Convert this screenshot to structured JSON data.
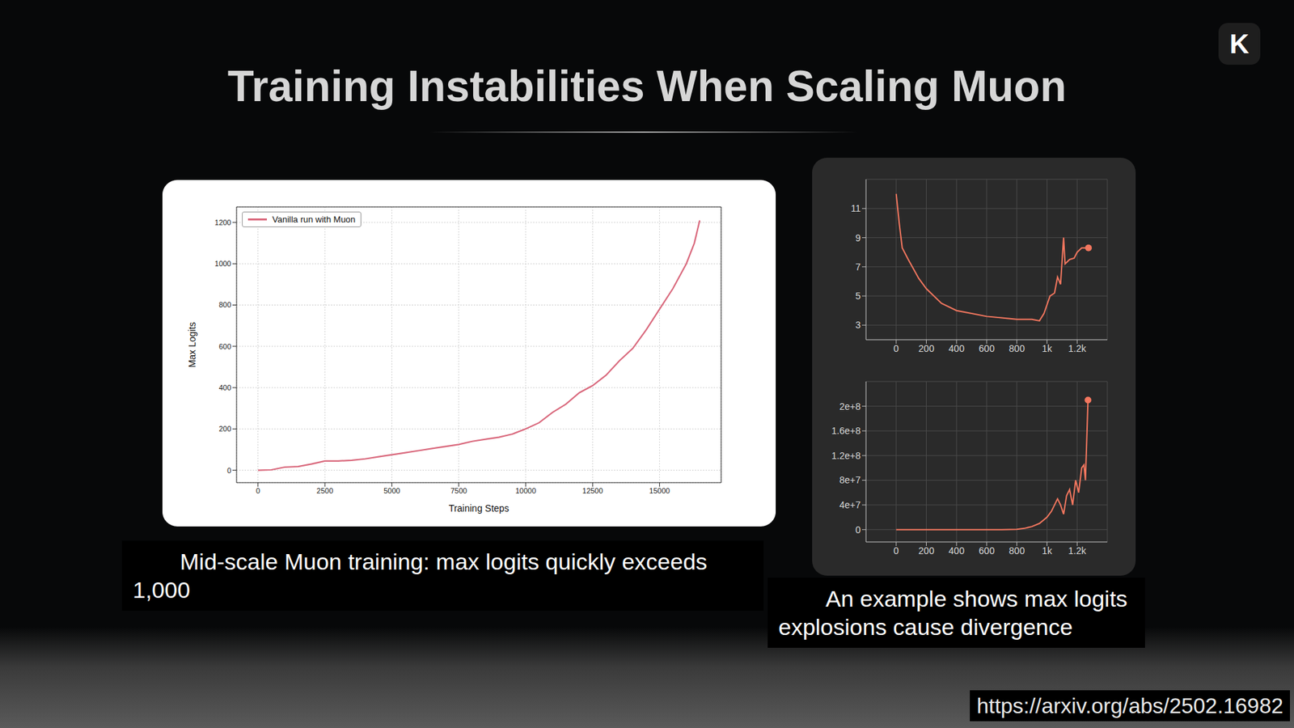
{
  "title": "Training Instabilities When Scaling Muon",
  "logo": "K",
  "url": "https://arxiv.org/abs/2502.16982",
  "captions": [
    "Mid-scale Muon training: max logits quickly exceeds 1,000",
    "An example shows max logits explosions cause divergence"
  ],
  "chart_data": [
    {
      "type": "line",
      "x_label": "Training Steps",
      "y_label": "Max Logits",
      "x": [
        0,
        500,
        1000,
        1500,
        2000,
        2500,
        3000,
        3500,
        4000,
        4500,
        5000,
        5500,
        6000,
        6500,
        7000,
        7500,
        8000,
        8500,
        9000,
        9500,
        10000,
        10500,
        11000,
        11500,
        12000,
        12500,
        13000,
        13500,
        14000,
        14500,
        15000,
        15500,
        16000,
        16300,
        16500
      ],
      "series": [
        {
          "name": "Vanilla run with Muon",
          "color": "#d9687c",
          "marker": "none",
          "values": [
            0,
            2,
            15,
            18,
            30,
            45,
            45,
            48,
            55,
            65,
            75,
            85,
            95,
            105,
            115,
            125,
            140,
            150,
            160,
            175,
            200,
            230,
            280,
            320,
            375,
            410,
            460,
            530,
            590,
            680,
            780,
            880,
            1000,
            1100,
            1210
          ]
        }
      ],
      "xlim": [
        -800,
        17300
      ],
      "ylim": [
        -60,
        1275
      ],
      "xticks": [
        0,
        2500,
        5000,
        7500,
        10000,
        12500,
        15000
      ],
      "yticks": [
        0,
        200,
        400,
        600,
        800,
        1000,
        1200
      ],
      "grid": true,
      "legend": "upper left"
    },
    {
      "type": "line",
      "x": [
        0,
        20,
        40,
        80,
        150,
        200,
        300,
        400,
        500,
        600,
        700,
        800,
        900,
        950,
        980,
        1020,
        1050,
        1070,
        1090,
        1110,
        1120,
        1150,
        1180,
        1200,
        1230,
        1275
      ],
      "series": [
        {
          "color": "#f4775f",
          "marker": "last",
          "values": [
            12,
            10,
            8.3,
            7.5,
            6.2,
            5.5,
            4.5,
            4,
            3.8,
            3.6,
            3.5,
            3.4,
            3.4,
            3.3,
            3.8,
            5,
            5.2,
            6.3,
            5.8,
            9,
            7.2,
            7.5,
            7.6,
            8,
            8.3,
            8.3
          ]
        }
      ],
      "xlim": [
        -200,
        1400
      ],
      "ylim": [
        2,
        13
      ],
      "xticks": [
        0,
        200,
        400,
        600,
        800,
        {
          "value": 1000,
          "label": "1k"
        },
        {
          "value": 1200,
          "label": "1.2k"
        }
      ],
      "yticks": [
        3,
        5,
        7,
        9,
        11
      ],
      "grid": true
    },
    {
      "type": "line",
      "x": [
        0,
        200,
        400,
        600,
        700,
        800,
        850,
        900,
        950,
        1000,
        1030,
        1050,
        1070,
        1090,
        1110,
        1130,
        1150,
        1170,
        1190,
        1210,
        1230,
        1245,
        1255,
        1272
      ],
      "series": [
        {
          "color": "#f4775f",
          "marker": "last",
          "values": [
            0,
            0,
            0,
            0,
            0,
            500000,
            2000000,
            5000000,
            10000000,
            20000000,
            30000000,
            40000000,
            50000000,
            40000000,
            25000000,
            55000000,
            65000000,
            40000000,
            80000000,
            60000000,
            100000000,
            105000000,
            80000000,
            210000000
          ]
        }
      ],
      "xlim": [
        -200,
        1400
      ],
      "ylim": [
        -20000000,
        240000000
      ],
      "xticks": [
        0,
        200,
        400,
        600,
        800,
        {
          "value": 1000,
          "label": "1k"
        },
        {
          "value": 1200,
          "label": "1.2k"
        }
      ],
      "yticks": [
        0,
        {
          "value": 40000000,
          "label": "4e+7"
        },
        {
          "value": 80000000,
          "label": "8e+7"
        },
        {
          "value": 120000000,
          "label": "1.2e+8"
        },
        {
          "value": 160000000,
          "label": "1.6e+8"
        },
        {
          "value": 200000000,
          "label": "2e+8"
        }
      ],
      "grid": true
    }
  ]
}
